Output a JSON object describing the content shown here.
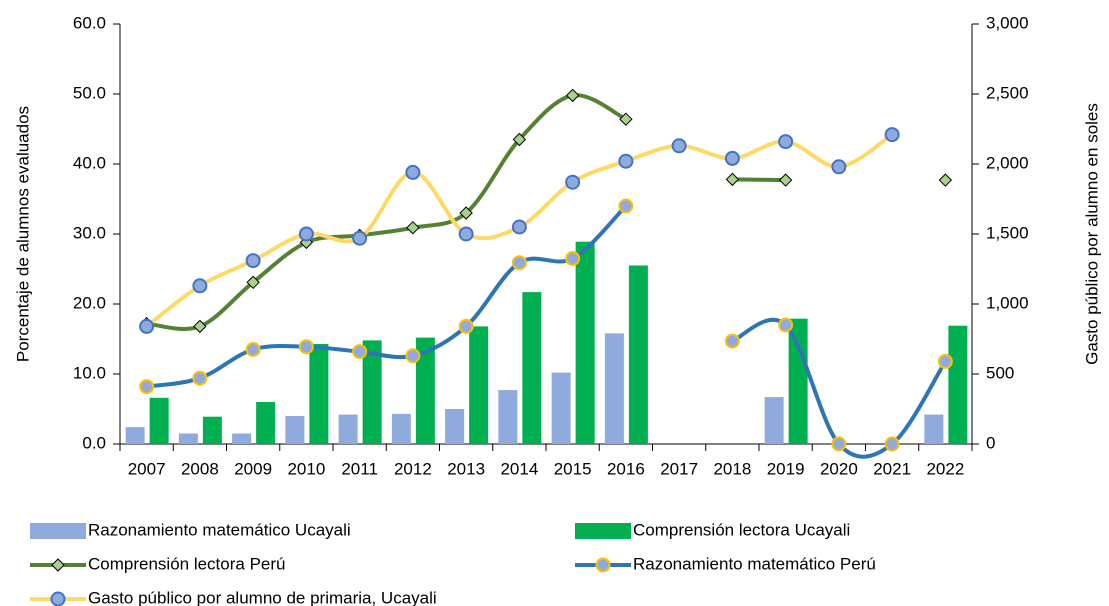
{
  "chart_data": {
    "type": "combo",
    "y_label": "Porcentaje de alumnos evaluados",
    "y2_label": "Gasto público por alumno en soles",
    "categories": [
      "2007",
      "2008",
      "2009",
      "2010",
      "2011",
      "2012",
      "2013",
      "2014",
      "2015",
      "2016",
      "2017",
      "2018",
      "2019",
      "2020",
      "2021",
      "2022"
    ],
    "ylim": [
      0,
      60
    ],
    "yticks": [
      {
        "value": 0,
        "label": "0.0"
      },
      {
        "value": 10,
        "label": "10.0"
      },
      {
        "value": 20,
        "label": "20.0"
      },
      {
        "value": 30,
        "label": "30.0"
      },
      {
        "value": 40,
        "label": "40.0"
      },
      {
        "value": 50,
        "label": "50.0"
      },
      {
        "value": 60,
        "label": "60.0"
      }
    ],
    "y2lim": [
      0,
      3000
    ],
    "y2ticks": [
      0,
      500,
      {
        "value": 1000,
        "label": "1,000"
      },
      {
        "value": 1500,
        "label": "1,500"
      },
      {
        "value": 2000,
        "label": "2,000"
      },
      {
        "value": 2500,
        "label": "2,500"
      },
      {
        "value": 3000,
        "label": "3,000"
      }
    ],
    "series": [
      {
        "name": "Razonamiento matemático Ucayali",
        "kind": "bar",
        "color": "#8faadc",
        "values": [
          2.4,
          1.5,
          1.5,
          4.0,
          4.2,
          4.3,
          5.0,
          7.7,
          10.2,
          15.8,
          null,
          null,
          6.7,
          null,
          null,
          4.2
        ]
      },
      {
        "name": "Comprensión lectora Ucayali",
        "kind": "bar",
        "color": "#00b050",
        "values": [
          6.6,
          3.9,
          6.0,
          14.3,
          14.8,
          15.2,
          16.8,
          21.7,
          28.9,
          25.5,
          null,
          null,
          17.9,
          null,
          null,
          16.9
        ]
      },
      {
        "name": "Comprensión lectora Perú",
        "kind": "line",
        "color": "#548235",
        "marker": "diamond",
        "marker_color": "#a9d18e",
        "values": [
          17.2,
          16.8,
          23.1,
          28.8,
          29.8,
          30.9,
          33.0,
          43.5,
          49.8,
          46.4,
          null,
          37.8,
          37.7,
          null,
          null,
          37.7
        ]
      },
      {
        "name": "Razonamiento matemático Perú",
        "kind": "line",
        "color": "#2e75b6",
        "marker": "circle",
        "marker_color": "#8faadc",
        "values": [
          8.2,
          9.4,
          13.5,
          13.9,
          13.2,
          12.6,
          16.8,
          25.9,
          26.5,
          34.0,
          null,
          14.7,
          17.0,
          0,
          0,
          11.8
        ]
      },
      {
        "name": "Gasto público por alumno de primaria, Ucayali",
        "kind": "line",
        "axis": "y2",
        "color": "#ffd966",
        "marker": "circle",
        "marker_color": "#8faadc",
        "values": [
          840,
          1130,
          1310,
          1500,
          1470,
          1940,
          1500,
          1550,
          1870,
          2020,
          2130,
          2040,
          2160,
          1980,
          2210,
          null
        ]
      }
    ]
  }
}
